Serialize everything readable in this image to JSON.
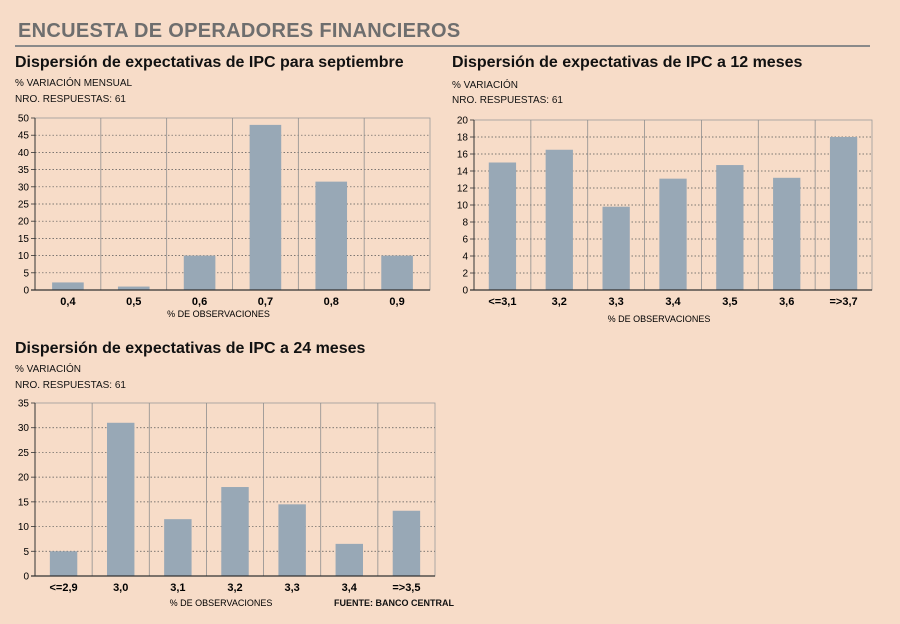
{
  "header": {
    "title": "ENCUESTA DE OPERADORES FINANCIEROS"
  },
  "source": "FUENTE: BANCO CENTRAL",
  "chart_data": [
    {
      "type": "bar",
      "title": "Dispersión de expectativas de IPC para septiembre",
      "ylabel": "% VARIACIÓN MENSUAL",
      "note": "NRO. RESPUESTAS: 61",
      "xlabel": "% DE OBSERVACIONES",
      "categories": [
        "0,4",
        "0,5",
        "0,6",
        "0,7",
        "0,8",
        "0,9"
      ],
      "values": [
        2.2,
        1.0,
        10.0,
        48.0,
        31.5,
        10.0
      ],
      "ylim": [
        0,
        50
      ],
      "yticks": [
        0,
        5,
        10,
        15,
        20,
        25,
        30,
        35,
        40,
        45,
        50
      ],
      "grid": true,
      "bar_color": "#98a8b6"
    },
    {
      "type": "bar",
      "title": "Dispersión de expectativas de IPC a 12 meses",
      "ylabel": "% VARIACIÓN",
      "note": "NRO. RESPUESTAS: 61",
      "xlabel": "% DE OBSERVACIONES",
      "categories": [
        "<=3,1",
        "3,2",
        "3,3",
        "3,4",
        "3,5",
        "3,6",
        "=>3,7"
      ],
      "values": [
        15.0,
        16.5,
        9.8,
        13.1,
        14.7,
        13.2,
        18.0
      ],
      "ylim": [
        0,
        20
      ],
      "yticks": [
        0,
        2,
        4,
        6,
        8,
        10,
        12,
        14,
        16,
        18,
        20
      ],
      "grid": true,
      "bar_color": "#98a8b6"
    },
    {
      "type": "bar",
      "title": "Dispersión de expectativas de IPC a 24 meses",
      "ylabel": "% VARIACIÓN",
      "note": "NRO. RESPUESTAS: 61",
      "xlabel": "% DE OBSERVACIONES",
      "categories": [
        "<=2,9",
        "3,0",
        "3,1",
        "3,2",
        "3,3",
        "3,4",
        "=>3,5"
      ],
      "values": [
        5.0,
        31.0,
        11.5,
        18.0,
        14.5,
        6.5,
        13.2
      ],
      "ylim": [
        0,
        35
      ],
      "yticks": [
        0,
        5,
        10,
        15,
        20,
        25,
        30,
        35
      ],
      "grid": true,
      "bar_color": "#98a8b6"
    }
  ]
}
